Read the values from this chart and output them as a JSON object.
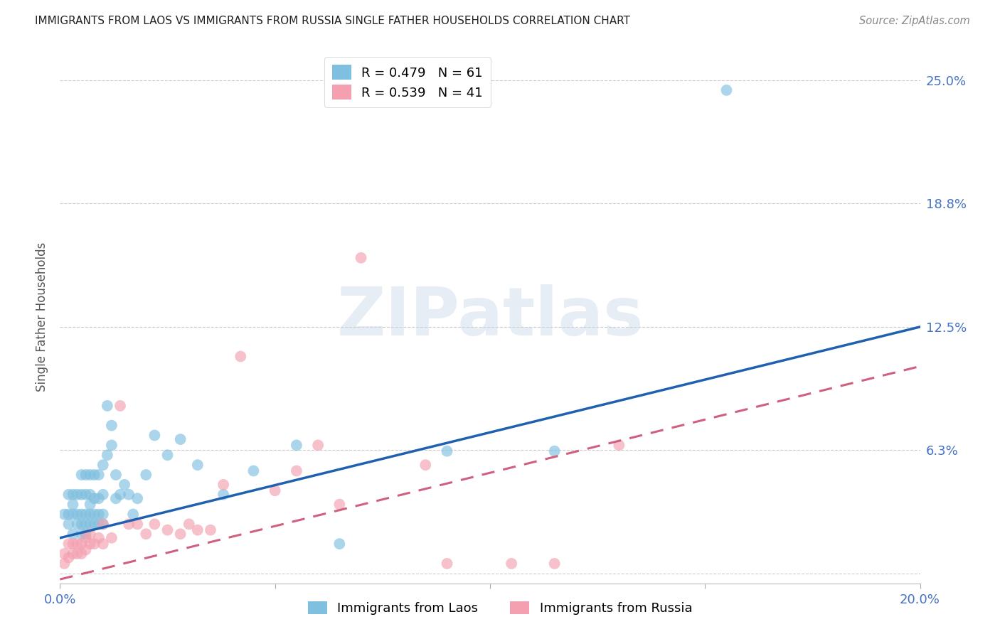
{
  "title": "IMMIGRANTS FROM LAOS VS IMMIGRANTS FROM RUSSIA SINGLE FATHER HOUSEHOLDS CORRELATION CHART",
  "source": "Source: ZipAtlas.com",
  "ylabel": "Single Father Households",
  "xlim": [
    0.0,
    0.2
  ],
  "ylim": [
    -0.005,
    0.265
  ],
  "yticks": [
    0.0,
    0.0625,
    0.125,
    0.1875,
    0.25
  ],
  "ytick_labels": [
    "",
    "6.3%",
    "12.5%",
    "18.8%",
    "25.0%"
  ],
  "xticks": [
    0.0,
    0.05,
    0.1,
    0.15,
    0.2
  ],
  "xtick_labels": [
    "0.0%",
    "",
    "",
    "",
    "20.0%"
  ],
  "laos_R": 0.479,
  "laos_N": 61,
  "russia_R": 0.539,
  "russia_N": 41,
  "laos_color": "#7fbfdf",
  "russia_color": "#f4a0b0",
  "laos_line_color": "#2060b0",
  "russia_line_color": "#d06080",
  "axis_label_color": "#555555",
  "tick_color": "#4472C4",
  "watermark_text": "ZIPatlas",
  "legend_laos_label": "Immigrants from Laos",
  "legend_russia_label": "Immigrants from Russia",
  "laos_line_x0": 0.0,
  "laos_line_y0": 0.018,
  "laos_line_x1": 0.2,
  "laos_line_y1": 0.125,
  "russia_line_x0": 0.0,
  "russia_line_y0": -0.003,
  "russia_line_x1": 0.2,
  "russia_line_y1": 0.105,
  "laos_x": [
    0.001,
    0.002,
    0.002,
    0.002,
    0.003,
    0.003,
    0.003,
    0.003,
    0.004,
    0.004,
    0.004,
    0.005,
    0.005,
    0.005,
    0.005,
    0.005,
    0.006,
    0.006,
    0.006,
    0.006,
    0.006,
    0.007,
    0.007,
    0.007,
    0.007,
    0.007,
    0.008,
    0.008,
    0.008,
    0.008,
    0.009,
    0.009,
    0.009,
    0.009,
    0.01,
    0.01,
    0.01,
    0.01,
    0.011,
    0.011,
    0.012,
    0.012,
    0.013,
    0.013,
    0.014,
    0.015,
    0.016,
    0.017,
    0.018,
    0.02,
    0.022,
    0.025,
    0.028,
    0.032,
    0.038,
    0.045,
    0.055,
    0.065,
    0.09,
    0.115,
    0.155
  ],
  "laos_y": [
    0.03,
    0.025,
    0.03,
    0.04,
    0.02,
    0.03,
    0.035,
    0.04,
    0.025,
    0.03,
    0.04,
    0.02,
    0.025,
    0.03,
    0.04,
    0.05,
    0.02,
    0.025,
    0.03,
    0.04,
    0.05,
    0.025,
    0.03,
    0.035,
    0.04,
    0.05,
    0.025,
    0.03,
    0.038,
    0.05,
    0.025,
    0.03,
    0.038,
    0.05,
    0.025,
    0.03,
    0.04,
    0.055,
    0.085,
    0.06,
    0.065,
    0.075,
    0.038,
    0.05,
    0.04,
    0.045,
    0.04,
    0.03,
    0.038,
    0.05,
    0.07,
    0.06,
    0.068,
    0.055,
    0.04,
    0.052,
    0.065,
    0.015,
    0.062,
    0.062,
    0.245
  ],
  "russia_x": [
    0.001,
    0.001,
    0.002,
    0.002,
    0.003,
    0.003,
    0.004,
    0.004,
    0.005,
    0.005,
    0.006,
    0.006,
    0.007,
    0.007,
    0.008,
    0.009,
    0.01,
    0.01,
    0.012,
    0.014,
    0.016,
    0.018,
    0.02,
    0.022,
    0.025,
    0.028,
    0.03,
    0.032,
    0.035,
    0.038,
    0.042,
    0.05,
    0.055,
    0.06,
    0.065,
    0.07,
    0.085,
    0.09,
    0.105,
    0.115,
    0.13
  ],
  "russia_y": [
    0.005,
    0.01,
    0.008,
    0.015,
    0.01,
    0.015,
    0.01,
    0.015,
    0.01,
    0.015,
    0.012,
    0.018,
    0.015,
    0.02,
    0.015,
    0.018,
    0.015,
    0.025,
    0.018,
    0.085,
    0.025,
    0.025,
    0.02,
    0.025,
    0.022,
    0.02,
    0.025,
    0.022,
    0.022,
    0.045,
    0.11,
    0.042,
    0.052,
    0.065,
    0.035,
    0.16,
    0.055,
    0.005,
    0.005,
    0.005,
    0.065
  ]
}
